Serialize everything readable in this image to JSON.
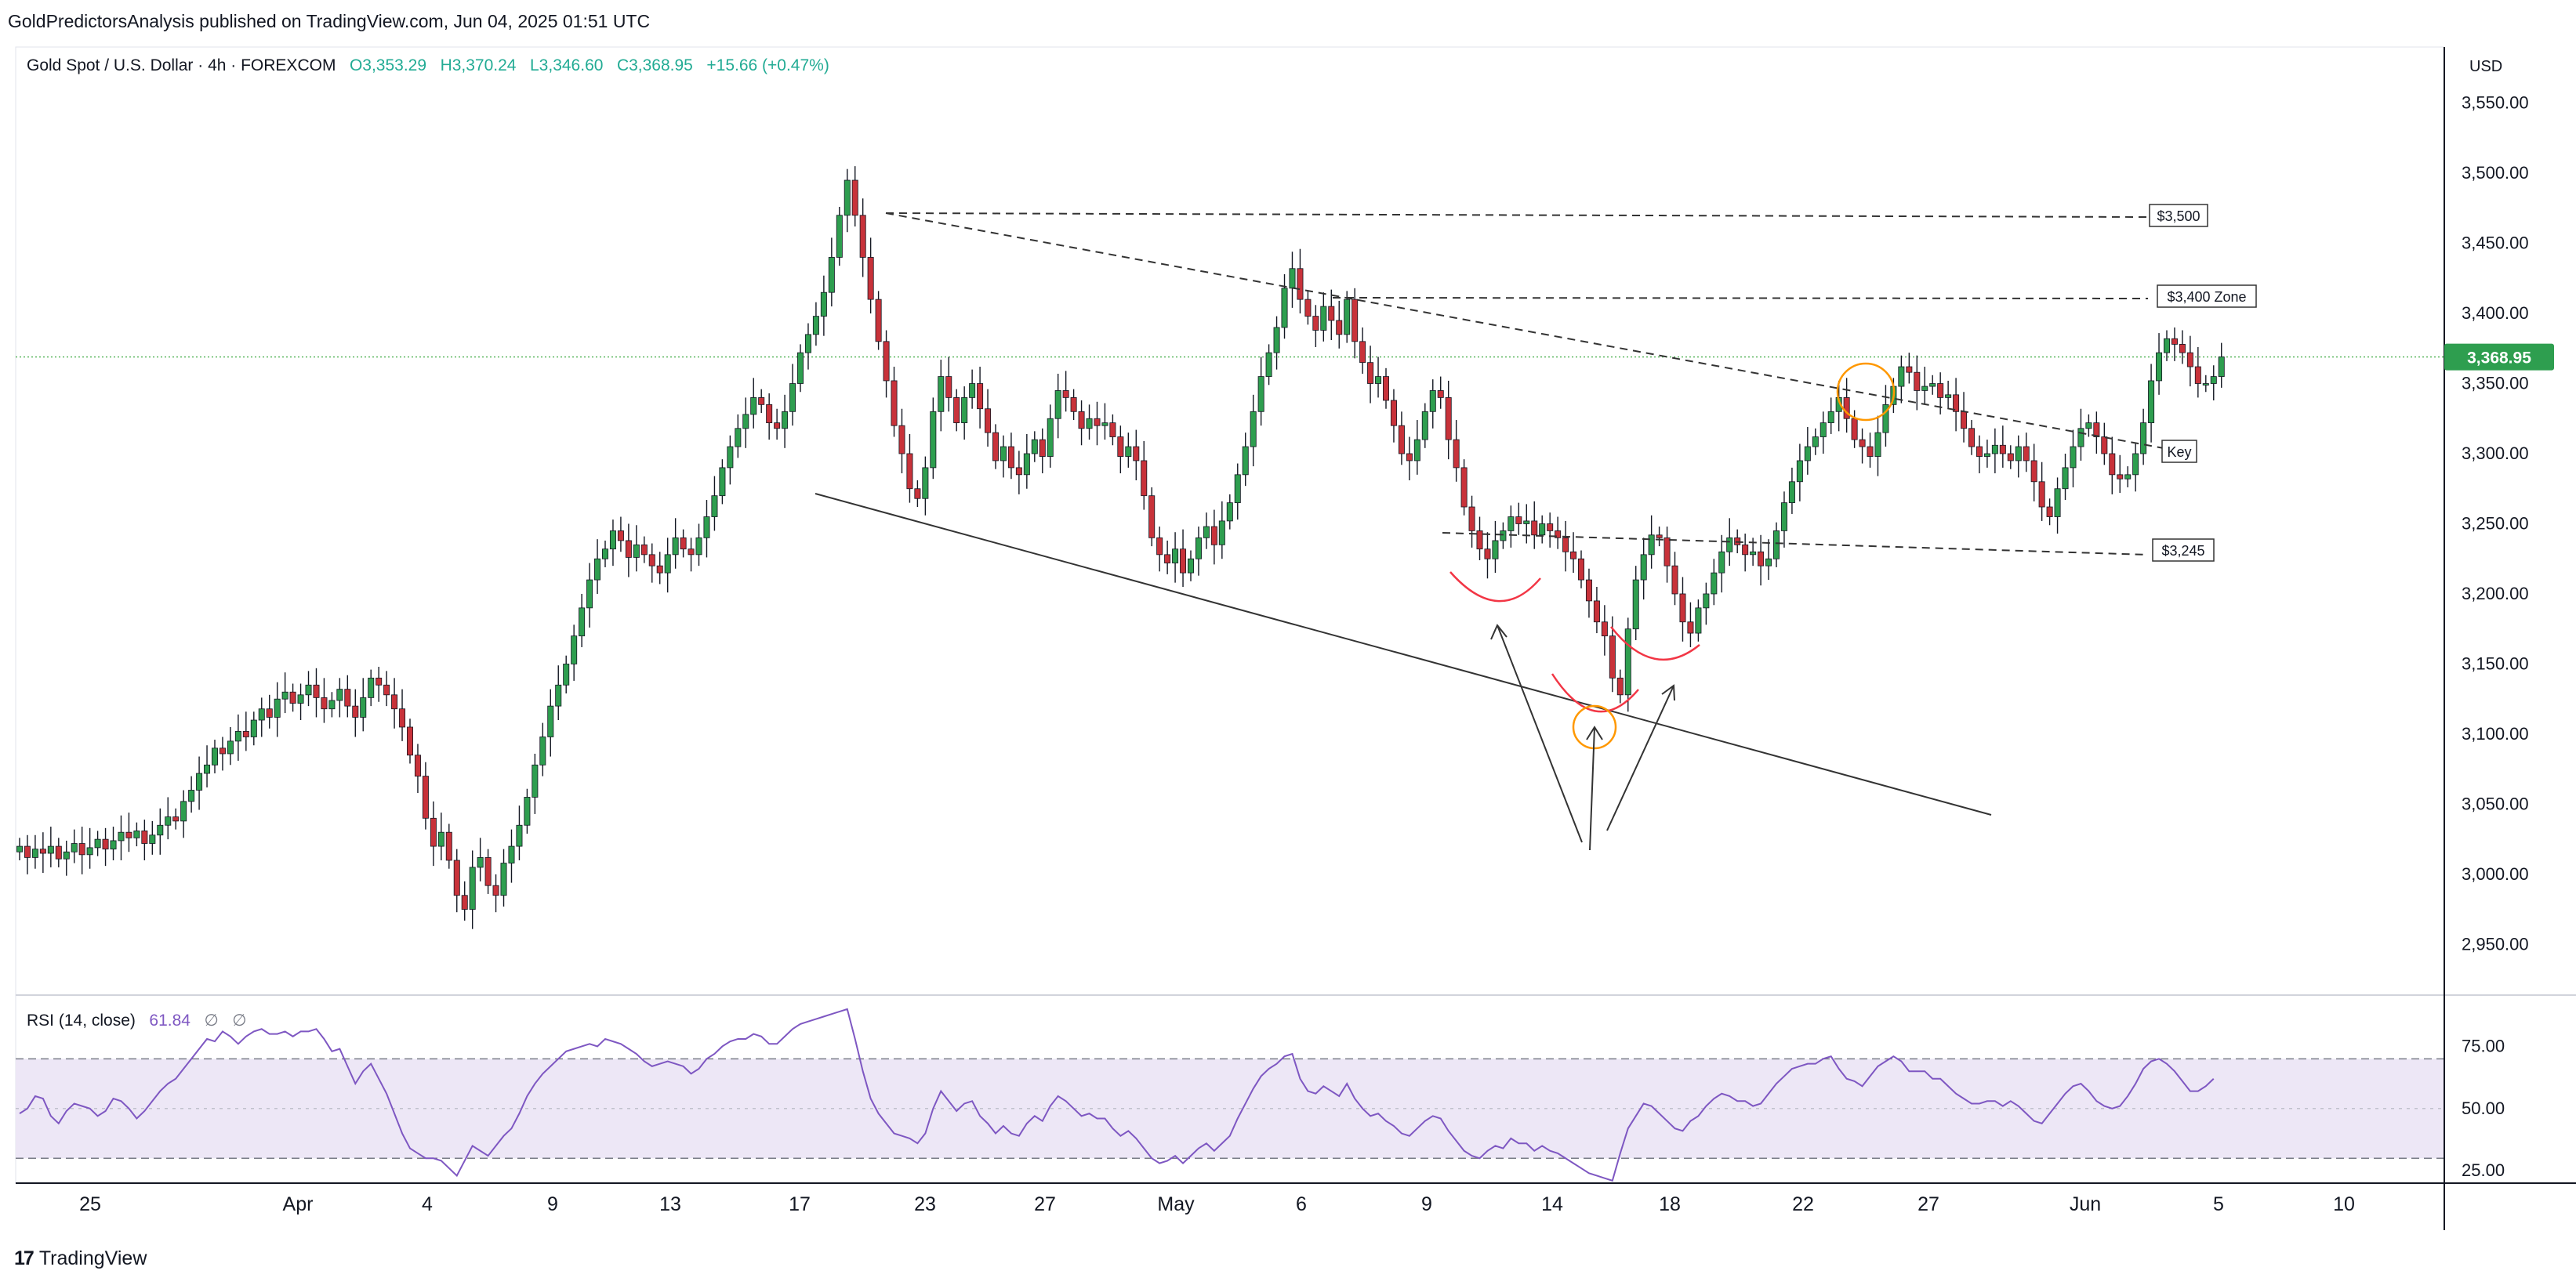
{
  "header": {
    "published": "GoldPredictorsAnalysis published on TradingView.com, Jun 04, 2025 01:51 UTC"
  },
  "legend": {
    "symbol": "Gold Spot / U.S. Dollar · 4h · FOREXCOM",
    "open": "O3,353.29",
    "high": "H3,370.24",
    "low": "L3,346.60",
    "close": "C3,368.95",
    "change": "+15.66 (+0.47%)"
  },
  "currency": "USD",
  "price_tag": "3,368.95",
  "annotations": {
    "label_3500": "$3,500",
    "label_3400": "$3,400 Zone",
    "label_key": "Key",
    "label_3245": "$3,245"
  },
  "rsi": {
    "title": "RSI (14, close)",
    "value": "61.84",
    "empty1": "∅",
    "empty2": "∅"
  },
  "footer": {
    "logo": "17",
    "brand": "TradingView"
  },
  "colors": {
    "up": "#22ab94",
    "down": "#f23645",
    "bull_body": "#2e9e4f",
    "bear_body": "#c8323a",
    "rsi_line": "#7e57c2",
    "rsi_band": "#ede7f6",
    "price_line": "#4caf50"
  },
  "chart_data": [
    {
      "type": "candlestick",
      "title": "Gold Spot / U.S. Dollar · 4h · FOREXCOM",
      "ylabel": "USD",
      "ylim": [
        2915,
        3590
      ],
      "yticks": [
        2950,
        3000,
        3050,
        3100,
        3150,
        3200,
        3250,
        3300,
        3350,
        3400,
        3450,
        3500,
        3550
      ],
      "ytick_labels": [
        "2,950.00",
        "3,000.00",
        "3,050.00",
        "3,100.00",
        "3,150.00",
        "3,200.00",
        "3,250.00",
        "3,300.00",
        "3,350.00",
        "3,400.00",
        "3,450.00",
        "3,500.00",
        "3,550.00"
      ],
      "xlabels": [
        "25",
        "Apr",
        "4",
        "9",
        "13",
        "17",
        "23",
        "27",
        "May",
        "6",
        "9",
        "14",
        "18",
        "22",
        "27",
        "Jun",
        "5",
        "10"
      ],
      "last_close": 3368.95,
      "closes": [
        3020,
        3012,
        3018,
        3015,
        3020,
        3011,
        3016,
        3022,
        3014,
        3019,
        3025,
        3018,
        3024,
        3030,
        3026,
        3031,
        3022,
        3028,
        3035,
        3041,
        3038,
        3052,
        3060,
        3072,
        3078,
        3090,
        3086,
        3095,
        3102,
        3098,
        3110,
        3118,
        3112,
        3125,
        3130,
        3122,
        3128,
        3135,
        3126,
        3118,
        3124,
        3132,
        3120,
        3112,
        3126,
        3140,
        3135,
        3128,
        3118,
        3105,
        3085,
        3070,
        3040,
        3020,
        3030,
        3010,
        2985,
        2975,
        3005,
        3012,
        2992,
        2985,
        3008,
        3020,
        3035,
        3055,
        3078,
        3098,
        3120,
        3135,
        3150,
        3170,
        3190,
        3210,
        3225,
        3232,
        3245,
        3238,
        3226,
        3235,
        3228,
        3220,
        3215,
        3228,
        3240,
        3232,
        3228,
        3240,
        3255,
        3270,
        3290,
        3305,
        3318,
        3328,
        3340,
        3335,
        3322,
        3318,
        3330,
        3350,
        3372,
        3385,
        3398,
        3415,
        3440,
        3470,
        3495,
        3470,
        3440,
        3410,
        3380,
        3352,
        3320,
        3300,
        3275,
        3268,
        3290,
        3330,
        3355,
        3340,
        3322,
        3340,
        3350,
        3332,
        3315,
        3295,
        3305,
        3290,
        3285,
        3300,
        3310,
        3298,
        3325,
        3345,
        3340,
        3330,
        3318,
        3325,
        3320,
        3322,
        3312,
        3298,
        3305,
        3295,
        3270,
        3240,
        3228,
        3222,
        3232,
        3215,
        3225,
        3240,
        3248,
        3235,
        3252,
        3265,
        3285,
        3305,
        3330,
        3355,
        3372,
        3390,
        3418,
        3432,
        3410,
        3398,
        3388,
        3405,
        3395,
        3385,
        3410,
        3380,
        3365,
        3350,
        3355,
        3338,
        3320,
        3300,
        3295,
        3310,
        3330,
        3345,
        3340,
        3310,
        3290,
        3262,
        3245,
        3232,
        3225,
        3238,
        3245,
        3255,
        3250,
        3252,
        3242,
        3250,
        3245,
        3240,
        3230,
        3225,
        3210,
        3195,
        3180,
        3170,
        3140,
        3128,
        3175,
        3210,
        3228,
        3242,
        3240,
        3220,
        3200,
        3180,
        3172,
        3190,
        3200,
        3215,
        3230,
        3240,
        3235,
        3228,
        3230,
        3220,
        3225,
        3245,
        3265,
        3280,
        3295,
        3305,
        3312,
        3322,
        3330,
        3340,
        3325,
        3310,
        3305,
        3298,
        3315,
        3335,
        3348,
        3362,
        3358,
        3345,
        3348,
        3350,
        3340,
        3342,
        3330,
        3318,
        3305,
        3298,
        3300,
        3306,
        3300,
        3295,
        3305,
        3295,
        3280,
        3262,
        3255,
        3275,
        3290,
        3305,
        3318,
        3322,
        3312,
        3300,
        3285,
        3282,
        3285,
        3300,
        3322,
        3352,
        3372,
        3382,
        3378,
        3372,
        3362,
        3350,
        3350,
        3355,
        3369
      ]
    },
    {
      "type": "line",
      "title": "RSI (14, close)",
      "ylim": [
        20,
        95
      ],
      "yticks": [
        25,
        50,
        75
      ],
      "ytick_labels": [
        "25.00",
        "50.00",
        "75.00"
      ],
      "overbought": 70,
      "oversold": 30,
      "midline": 50,
      "last_value": 61.84,
      "values": [
        48,
        50,
        55,
        54,
        47,
        44,
        49,
        52,
        51,
        50,
        47,
        49,
        54,
        53,
        50,
        46,
        49,
        53,
        57,
        60,
        62,
        66,
        70,
        74,
        78,
        77,
        81,
        79,
        76,
        79,
        81,
        82,
        80,
        80,
        81,
        79,
        81,
        81,
        82,
        78,
        73,
        74,
        67,
        60,
        65,
        68,
        62,
        56,
        48,
        40,
        34,
        32,
        30,
        30,
        29,
        26,
        23,
        29,
        35,
        33,
        31,
        35,
        39,
        42,
        48,
        55,
        60,
        64,
        67,
        70,
        73,
        74,
        75,
        76,
        75,
        78,
        77,
        76,
        74,
        72,
        69,
        67,
        68,
        69,
        68,
        67,
        64,
        66,
        70,
        72,
        75,
        77,
        78,
        78,
        80,
        79,
        76,
        76,
        79,
        82,
        84,
        85,
        86,
        87,
        88,
        89,
        90,
        78,
        65,
        54,
        48,
        44,
        40,
        39,
        38,
        36,
        40,
        50,
        57,
        53,
        49,
        52,
        53,
        47,
        44,
        40,
        43,
        40,
        39,
        44,
        47,
        45,
        51,
        55,
        53,
        50,
        47,
        48,
        46,
        46,
        42,
        39,
        41,
        38,
        34,
        30,
        28,
        29,
        31,
        28,
        31,
        34,
        36,
        33,
        36,
        39,
        46,
        52,
        58,
        63,
        66,
        68,
        71,
        72,
        62,
        57,
        56,
        59,
        57,
        55,
        60,
        54,
        50,
        47,
        48,
        45,
        43,
        40,
        39,
        42,
        45,
        47,
        46,
        41,
        37,
        33,
        31,
        30,
        33,
        35,
        34,
        38,
        36,
        36,
        33,
        35,
        33,
        32,
        30,
        28,
        26,
        24,
        23,
        22,
        21,
        32,
        42,
        47,
        52,
        51,
        48,
        45,
        42,
        41,
        45,
        47,
        51,
        54,
        56,
        55,
        53,
        53,
        51,
        52,
        56,
        60,
        63,
        66,
        67,
        68,
        68,
        70,
        71,
        66,
        62,
        61,
        59,
        63,
        67,
        69,
        71,
        69,
        65,
        65,
        65,
        62,
        62,
        59,
        56,
        54,
        52,
        52,
        53,
        53,
        51,
        53,
        51,
        48,
        45,
        44,
        48,
        52,
        56,
        59,
        60,
        57,
        53,
        51,
        50,
        51,
        55,
        60,
        66,
        69,
        70,
        68,
        65,
        61,
        57,
        57,
        59,
        62
      ]
    }
  ]
}
